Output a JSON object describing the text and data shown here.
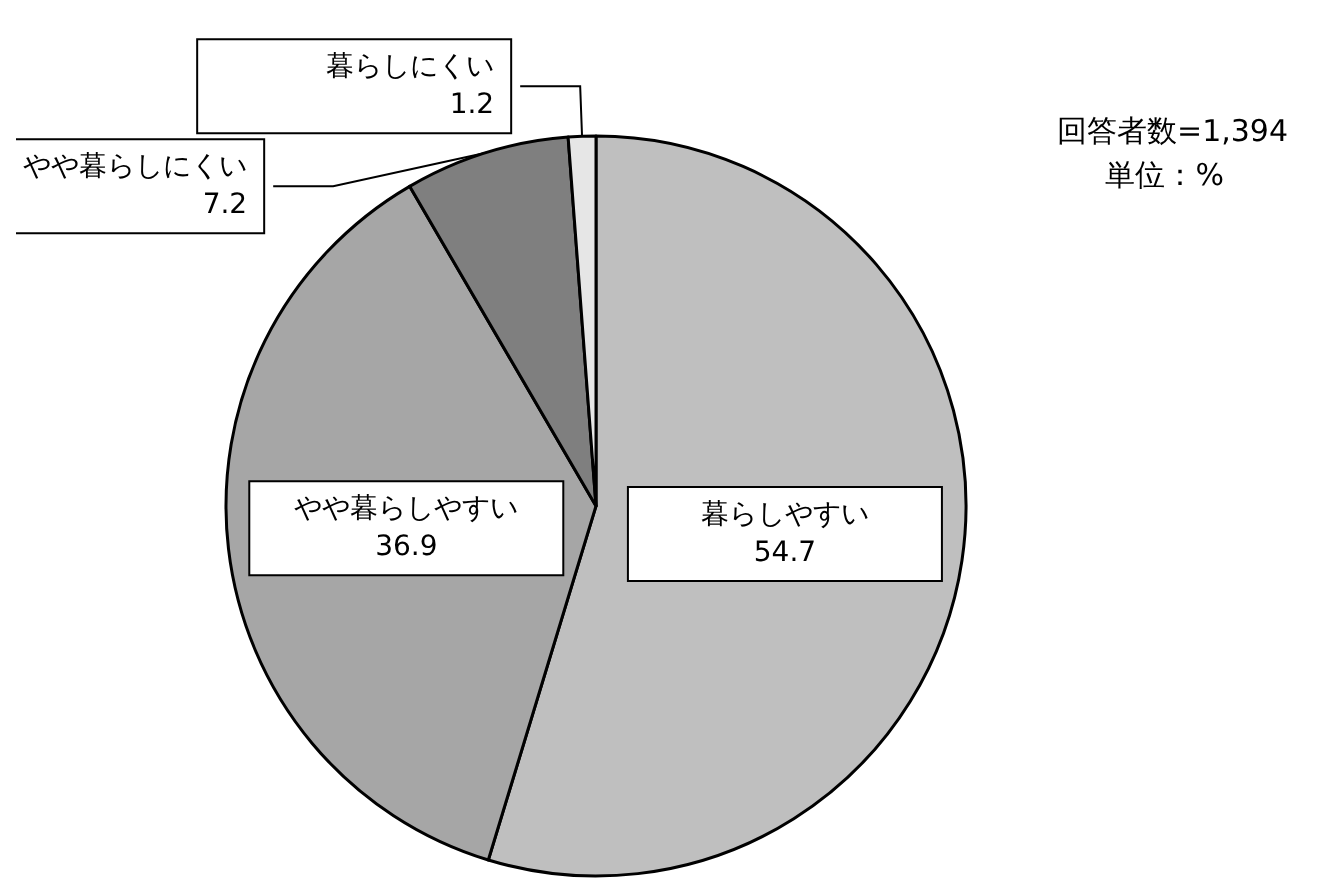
{
  "chart_data": {
    "type": "pie",
    "categories": [
      "暮らしやすい",
      "やや暮らしやすい",
      "やや暮らしにくい",
      "暮らしにくい"
    ],
    "values": [
      54.7,
      36.9,
      7.2,
      1.2
    ],
    "colors": [
      "#bfbfbf",
      "#a6a6a6",
      "#7f7f7f",
      "#e6e6e6"
    ],
    "data_labels": true,
    "legend": false,
    "annotations": [
      "回答者数=1,394",
      "単位：%"
    ]
  }
}
